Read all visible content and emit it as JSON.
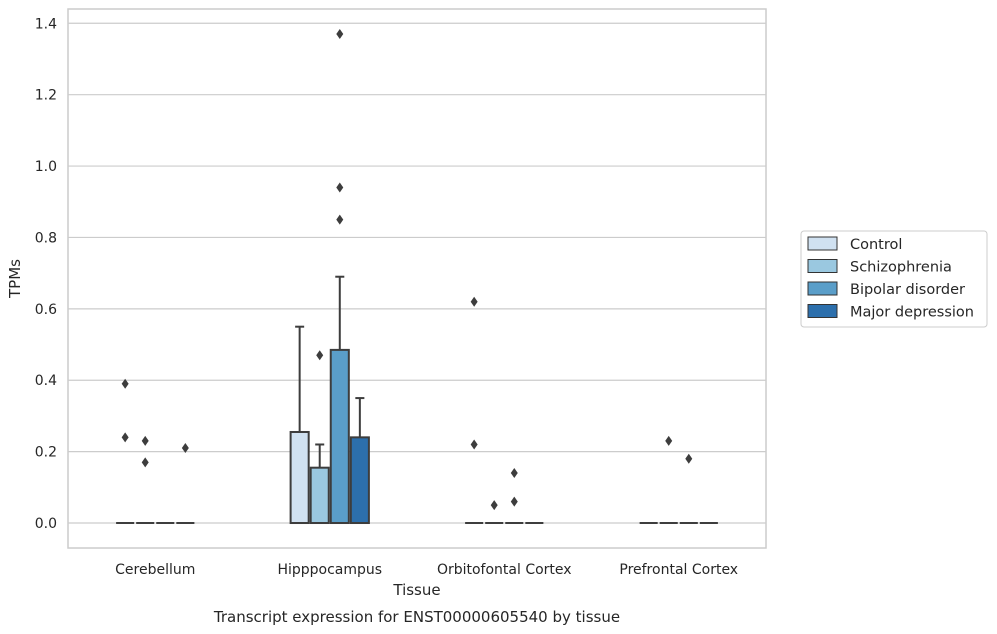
{
  "chart_data": {
    "type": "box",
    "xlabel": "Tissue",
    "ylabel": "TPMs",
    "caption": "Transcript expression for ENST00000605540 by tissue",
    "ylim": [
      -0.07,
      1.44
    ],
    "yticks": [
      0.0,
      0.2,
      0.4,
      0.6,
      0.8,
      1.0,
      1.2,
      1.4
    ],
    "ytick_labels": [
      "0.0",
      "0.2",
      "0.4",
      "0.6",
      "0.8",
      "1.0",
      "1.2",
      "1.4"
    ],
    "grid": "horizontal",
    "legend_position": "right",
    "categories": [
      "Cerebellum",
      "Hipppocampus",
      "Orbitofontal Cortex",
      "Prefrontal Cortex"
    ],
    "series": [
      {
        "name": "Control",
        "color": "#d0e1f1",
        "boxes": [
          {
            "q1": 0,
            "median": 0,
            "q3": 0,
            "whisker_low": 0,
            "whisker_high": 0,
            "outliers": [
              0.24,
              0.39
            ]
          },
          {
            "q1": 0,
            "median": 0,
            "q3": 0.255,
            "whisker_low": 0,
            "whisker_high": 0.55,
            "outliers": []
          },
          {
            "q1": 0,
            "median": 0,
            "q3": 0,
            "whisker_low": 0,
            "whisker_high": 0,
            "outliers": [
              0.22,
              0.62
            ]
          },
          {
            "q1": 0,
            "median": 0,
            "q3": 0,
            "whisker_low": 0,
            "whisker_high": 0,
            "outliers": []
          }
        ]
      },
      {
        "name": "Schizophrenia",
        "color": "#9ac8e0",
        "boxes": [
          {
            "q1": 0,
            "median": 0,
            "q3": 0,
            "whisker_low": 0,
            "whisker_high": 0,
            "outliers": [
              0.17,
              0.23
            ]
          },
          {
            "q1": 0,
            "median": 0,
            "q3": 0.155,
            "whisker_low": 0,
            "whisker_high": 0.22,
            "outliers": [
              0.47
            ]
          },
          {
            "q1": 0,
            "median": 0,
            "q3": 0,
            "whisker_low": 0,
            "whisker_high": 0,
            "outliers": [
              0.05
            ]
          },
          {
            "q1": 0,
            "median": 0,
            "q3": 0,
            "whisker_low": 0,
            "whisker_high": 0,
            "outliers": [
              0.23
            ]
          }
        ]
      },
      {
        "name": "Bipolar disorder",
        "color": "#5a9ec9",
        "boxes": [
          {
            "q1": 0,
            "median": 0,
            "q3": 0,
            "whisker_low": 0,
            "whisker_high": 0,
            "outliers": []
          },
          {
            "q1": 0,
            "median": 0,
            "q3": 0.485,
            "whisker_low": 0,
            "whisker_high": 0.69,
            "outliers": [
              0.85,
              0.94,
              1.37
            ]
          },
          {
            "q1": 0,
            "median": 0,
            "q3": 0,
            "whisker_low": 0,
            "whisker_high": 0,
            "outliers": [
              0.06,
              0.14
            ]
          },
          {
            "q1": 0,
            "median": 0,
            "q3": 0,
            "whisker_low": 0,
            "whisker_high": 0,
            "outliers": [
              0.18
            ]
          }
        ]
      },
      {
        "name": "Major depression",
        "color": "#2c6fac",
        "boxes": [
          {
            "q1": 0,
            "median": 0,
            "q3": 0,
            "whisker_low": 0,
            "whisker_high": 0,
            "outliers": [
              0.21
            ]
          },
          {
            "q1": 0,
            "median": 0,
            "q3": 0.24,
            "whisker_low": 0,
            "whisker_high": 0.35,
            "outliers": []
          },
          {
            "q1": 0,
            "median": 0,
            "q3": 0,
            "whisker_low": 0,
            "whisker_high": 0,
            "outliers": []
          },
          {
            "q1": 0,
            "median": 0,
            "q3": 0,
            "whisker_low": 0,
            "whisker_high": 0,
            "outliers": []
          }
        ]
      }
    ]
  }
}
